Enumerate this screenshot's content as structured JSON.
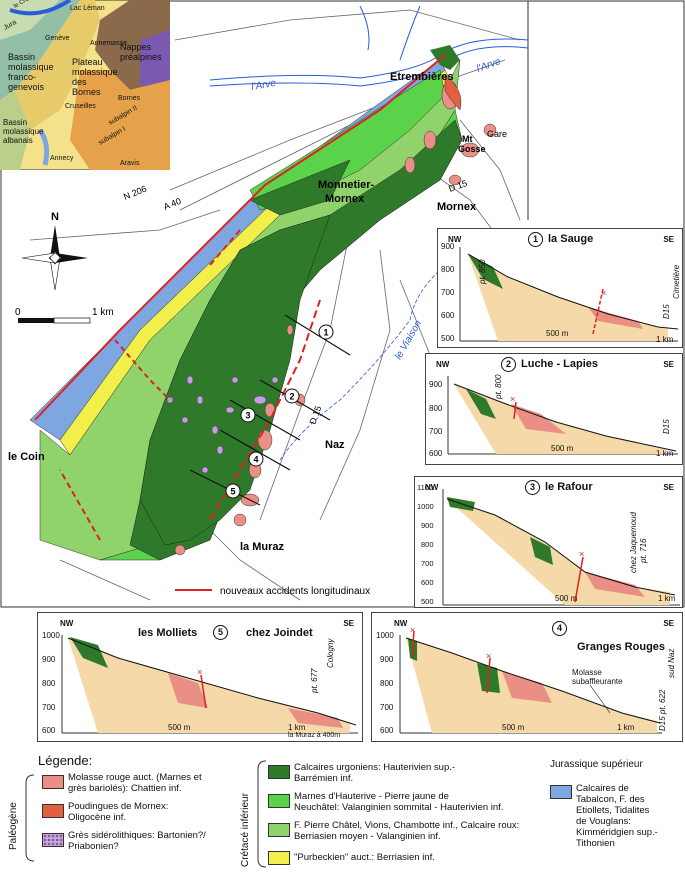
{
  "inset": {
    "labels": {
      "lac_leman": "Lac Léman",
      "geneve": "Genève",
      "bassin": "Bassin\nmolassique\nfranco-\ngenevois",
      "plateau": "Plateau\nmolassique\ndes\nBornes",
      "nappes": "Nappes\npréalpines",
      "annemasse": "Annemasse",
      "cruseilles": "Cruseilles",
      "bassin_albanais": "Bassin\nmolassique\nalbanais",
      "annecy": "Annecy",
      "subalpin1": "subalpin I",
      "subalpin2": "subalpin II",
      "aravis": "Aravis",
      "bornes": "Bornes",
      "jura": "Jura",
      "chaine": "le Chaîne"
    }
  },
  "map": {
    "places": {
      "etrembieres": "Etrembières",
      "monnetier": "Monnetier-\nMornex",
      "mornex": "Mornex",
      "mt_gosse": "Mt\nGosse",
      "gare": "Gare",
      "naz": "Naz",
      "le_coin": "le Coin",
      "la_muraz": "la Muraz"
    },
    "rivers": {
      "arve1": "l'Arve",
      "arve2": "l'Arve",
      "viaison": "le Viaison"
    },
    "roads": {
      "n206": "N 206",
      "a40": "A 40",
      "d15a": "D 15",
      "d15b": "D 15"
    },
    "north": "N",
    "scale": {
      "zero": "0",
      "one": "1 km"
    },
    "section_numbers": [
      "1",
      "2",
      "3",
      "4",
      "5"
    ],
    "fault_legend": "nouveaux accidents longitudinaux"
  },
  "sections": {
    "s1": {
      "num": "1",
      "title": "la Sauge",
      "nw": "NW",
      "se": "SE",
      "yticks": [
        "900",
        "800",
        "700",
        "600",
        "500"
      ],
      "dist": "500 m",
      "km": "1 km",
      "notes": {
        "pt": "pt. 850",
        "d15": "D15",
        "cim": "Cimetière"
      }
    },
    "s2": {
      "num": "2",
      "title": "Luche - Lapies",
      "nw": "NW",
      "se": "SE",
      "yticks": [
        "900",
        "800",
        "700",
        "600"
      ],
      "dist": "500 m",
      "km": "1 km",
      "notes": {
        "pt": "pt. 800",
        "d15": "D15"
      }
    },
    "s3": {
      "num": "3",
      "title": "le Rafour",
      "nw": "NW",
      "se": "SE",
      "yticks": [
        "1100",
        "1000",
        "900",
        "800",
        "700",
        "600",
        "500"
      ],
      "dist": "500 m",
      "km": "1 km",
      "notes": {
        "chez": "chez Jaquemoud",
        "pt": "pt. 716"
      }
    },
    "s4": {
      "num": "4",
      "title": "Granges Rouges",
      "nw": "NW",
      "se": "SE",
      "yticks": [
        "1000",
        "900",
        "800",
        "700",
        "600"
      ],
      "dist": "500 m",
      "km": "1 km",
      "notes": {
        "molasse": "Molasse\nsubaffleurante",
        "sud": "sud Naz",
        "d15": "D15 pt. 622"
      }
    },
    "s5": {
      "num": "5",
      "title_left": "les Molliets",
      "title_right": "chez Joindet",
      "nw": "NW",
      "se": "SE",
      "yticks": [
        "1000",
        "900",
        "800",
        "700",
        "600"
      ],
      "dist": "500 m",
      "km": "1 km",
      "notes": {
        "muraz": "la Muraz à 400m",
        "cologny": "Cologny",
        "pt": "pt. 677"
      }
    }
  },
  "legend": {
    "title": "Légende:",
    "paleogene": "Paléogène",
    "cretace": "Crétacé inférieur",
    "jurassique": "Jurassique supérieur",
    "items": {
      "molasse": "Molasse rouge auct. (Marnes et\ngrès bariolés): Chattien inf.",
      "poudingues": "Poudingues de Mornex:\nOligocène inf.",
      "gres": "Grès sidérolithiques: Bartonien?/\nPriabonien?",
      "urgoniens": "Calcaires urgoniens: Hauterivien sup.-\nBarrémien inf.",
      "hauterive": "Marnes d'Hauterive - Pierre jaune de\nNeuchâtel: Valanginien sommital - Hauterivien inf.",
      "chatel": "F. Pierre Châtel, Vions, Chambotte inf., Calcaire roux:\nBerriasien moyen - Valanginien inf.",
      "purbeckien": "\"Purbeckien\" auct.: Berriasien inf.",
      "tabalcon": "Calcaires de\nTabalcon, F. des\nEtiollets, Tidalites\nde Vouglans:\nKimméridgien sup.-\nTithonien"
    }
  },
  "colors": {
    "urgonien": "#2f7a2a",
    "hauterive": "#5ad24a",
    "chatel": "#8fd36a",
    "purbeck": "#f2ee4a",
    "jurassique": "#7ea7e2",
    "molasse": "#e98f86",
    "poudingue": "#e0603f",
    "gres": "#c99ae6",
    "quaternaire": "#f5d9a8",
    "fault": "#e02020",
    "river": "#2a5bd8"
  }
}
